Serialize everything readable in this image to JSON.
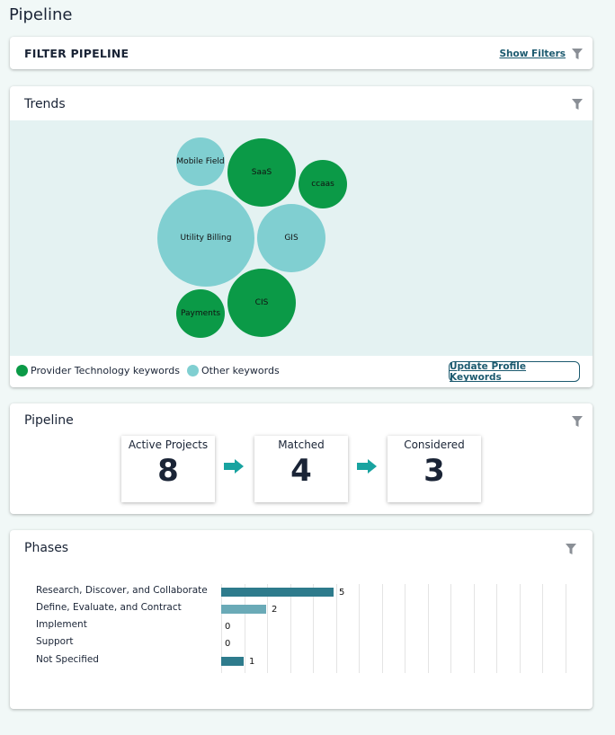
{
  "page": {
    "title": "Pipeline"
  },
  "filter_card": {
    "title": "FILTER PIPELINE",
    "show_filters_label": "Show Filters"
  },
  "trends": {
    "title": "Trends",
    "bubbles": [
      {
        "label": "Mobile Field",
        "group": "other"
      },
      {
        "label": "SaaS",
        "group": "provider"
      },
      {
        "label": "ccaas",
        "group": "provider"
      },
      {
        "label": "Utility Billing",
        "group": "other"
      },
      {
        "label": "GIS",
        "group": "other"
      },
      {
        "label": "Payments",
        "group": "provider"
      },
      {
        "label": "CIS",
        "group": "provider"
      }
    ],
    "legend": [
      {
        "label": "Provider Technology keywords",
        "color": "#0b9a47"
      },
      {
        "label": "Other keywords",
        "color": "#80cfd1"
      }
    ],
    "update_button_label": "Update Profile Keywords"
  },
  "pipeline": {
    "title": "Pipeline",
    "stats": [
      {
        "label": "Active Projects",
        "value": "8"
      },
      {
        "label": "Matched",
        "value": "4"
      },
      {
        "label": "Considered",
        "value": "3"
      }
    ]
  },
  "phases": {
    "title": "Phases",
    "chart_data": {
      "type": "bar",
      "orientation": "horizontal",
      "categories": [
        "Research, Discover, and Collaborate",
        "Define, Evaluate, and Contract",
        "Implement",
        "Support",
        "Not Specified"
      ],
      "values": [
        5,
        2,
        0,
        0,
        1
      ],
      "colors": [
        "#2e7b8c",
        "#6aaab7",
        "#2e7b8c",
        "#2e7b8c",
        "#2e7b8c"
      ],
      "grid": true
    }
  },
  "colors": {
    "provider": "#0b9a47",
    "other": "#80cfd1",
    "accent": "#1c5a6f",
    "arrow": "#18a3a0"
  }
}
